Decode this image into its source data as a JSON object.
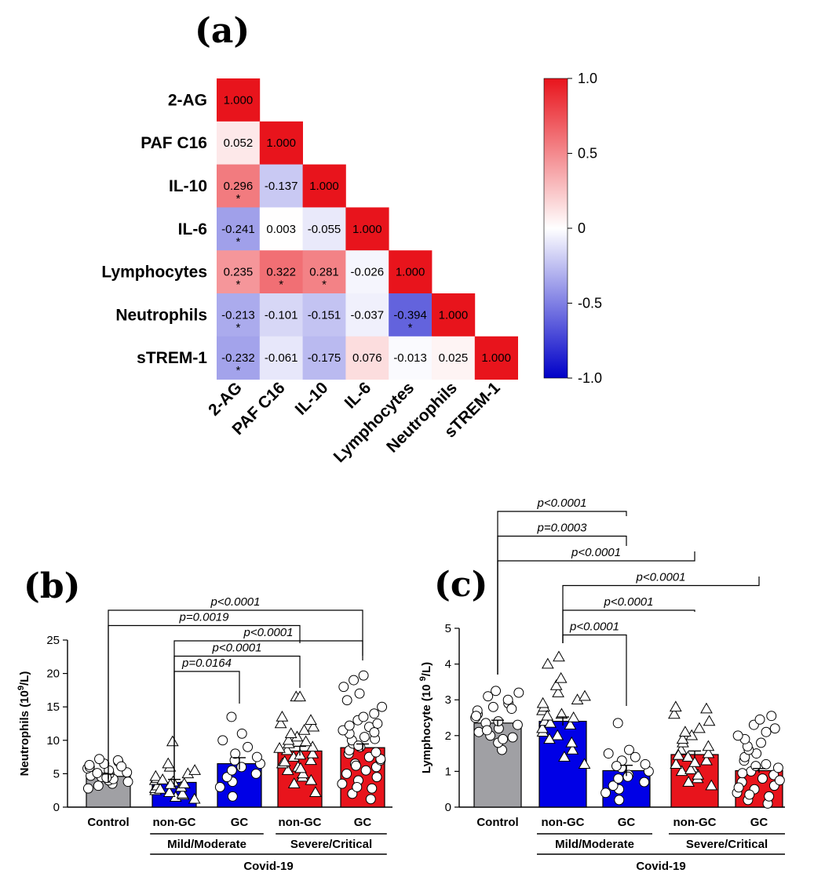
{
  "chart_data": [
    {
      "panel": "(a)",
      "type": "heatmap",
      "variables": [
        "2-AG",
        "PAF C16",
        "IL-10",
        "IL-6",
        "Lymphocytes",
        "Neutrophils",
        "sTREM-1"
      ],
      "matrix": [
        [
          "1.000"
        ],
        [
          "0.052",
          "1.000"
        ],
        [
          "0.296",
          "-0.137",
          "1.000"
        ],
        [
          "-0.241",
          "0.003",
          "-0.055",
          "1.000"
        ],
        [
          "0.235",
          "0.322",
          "0.281",
          "-0.026",
          "1.000"
        ],
        [
          "-0.213",
          "-0.101",
          "-0.151",
          "-0.037",
          "-0.394",
          "1.000"
        ],
        [
          "-0.232",
          "-0.061",
          "-0.175",
          "0.076",
          "-0.013",
          "0.025",
          "1.000"
        ]
      ],
      "significance_mark": "*",
      "significant": [
        [
          2,
          0
        ],
        [
          3,
          0
        ],
        [
          4,
          0
        ],
        [
          4,
          1
        ],
        [
          4,
          2
        ],
        [
          5,
          0
        ],
        [
          5,
          4
        ],
        [
          6,
          0
        ]
      ],
      "colorbar": {
        "ticks": [
          "1.0",
          "0.5",
          "0",
          "-0.5",
          "-1.0"
        ],
        "range": [
          -1,
          1
        ],
        "colors": {
          "low": "#0000c8",
          "mid": "#ffffff",
          "high": "#e8141c"
        }
      }
    },
    {
      "panel": "(b)",
      "type": "bar",
      "ylabel_pre": "Neutrophils (10",
      "ylabel_sup": "9",
      "ylabel_post": "/L)",
      "ylim": [
        0,
        25
      ],
      "yticks": [
        "0",
        "5",
        "10",
        "15",
        "20",
        "25"
      ],
      "categories": [
        "Control",
        "non-GC",
        "GC",
        "non-GC",
        "GC"
      ],
      "values": [
        4.6,
        3.7,
        6.5,
        8.4,
        8.9
      ],
      "sem": [
        0.35,
        0.45,
        0.9,
        0.7,
        0.55
      ],
      "bar_colors": [
        "#a0a0a4",
        "#0000e6",
        "#0000e6",
        "#e8141c",
        "#e8141c"
      ],
      "markers": [
        "circle",
        "triangle",
        "circle",
        "triangle",
        "circle"
      ],
      "points": [
        [
          3.5,
          4.0,
          4.2,
          4.5,
          4.7,
          5.0,
          5.2,
          5.5,
          5.8,
          6.0,
          6.3,
          6.5,
          6.8,
          7.0,
          7.2,
          3.8,
          4.4,
          5.1,
          3.2,
          2.8,
          6.1
        ],
        [
          1.2,
          1.5,
          1.8,
          2.0,
          2.2,
          2.5,
          2.8,
          3.0,
          3.2,
          3.5,
          3.8,
          4.0,
          4.3,
          4.6,
          5.0,
          5.5,
          6.0,
          6.5,
          9.8,
          2.7,
          3.4,
          4.1
        ],
        [
          1.6,
          3.0,
          3.8,
          4.5,
          5.0,
          5.5,
          6.0,
          6.5,
          7.0,
          7.5,
          8.0,
          9.0,
          10.0,
          11.0,
          13.5
        ],
        [
          2.2,
          3.5,
          4.5,
          5.0,
          5.5,
          6.0,
          6.5,
          7.0,
          7.5,
          8.0,
          8.5,
          9.0,
          9.5,
          10.0,
          10.5,
          11.0,
          11.5,
          12.0,
          12.5,
          13.0,
          13.5,
          16.5,
          16.5,
          6.8,
          7.8,
          8.8,
          9.8,
          4.0,
          5.8
        ],
        [
          1.2,
          2.0,
          2.8,
          3.5,
          4.0,
          4.5,
          5.0,
          5.5,
          6.0,
          6.5,
          7.0,
          7.5,
          8.0,
          8.5,
          9.0,
          9.5,
          10.0,
          10.5,
          11.0,
          11.5,
          12.0,
          12.5,
          13.0,
          13.5,
          14.0,
          15.0,
          16.0,
          17.0,
          18.0,
          19.0,
          19.7,
          3.0,
          6.2,
          7.2,
          8.2,
          9.2,
          10.2,
          11.2,
          12.2
        ]
      ],
      "subgroups": [
        {
          "label": "Mild/Moderate",
          "from": 1,
          "to": 2
        },
        {
          "label": "Severe/Critical",
          "from": 3,
          "to": 4
        }
      ],
      "group_label": "Covid-19",
      "brackets": [
        {
          "from": 0,
          "to": 4,
          "p": "p<0.0001"
        },
        {
          "from": 0,
          "to": 3,
          "p": "p=0.0019"
        },
        {
          "from": 1,
          "to": 4,
          "p": "p<0.0001"
        },
        {
          "from": 1,
          "to": 3,
          "p": "p<0.0001"
        },
        {
          "from": 1,
          "to": 2,
          "p": "p=0.0164"
        }
      ]
    },
    {
      "panel": "(c)",
      "type": "bar",
      "ylabel_pre": "Lymphocyte (10 ",
      "ylabel_sup": "9",
      "ylabel_post": "/L)",
      "ylim": [
        0,
        5
      ],
      "yticks": [
        "0",
        "1",
        "2",
        "3",
        "4",
        "5"
      ],
      "categories": [
        "Control",
        "non-GC",
        "GC",
        "non-GC",
        "GC"
      ],
      "values": [
        2.35,
        2.4,
        1.02,
        1.47,
        1.02
      ],
      "sem": [
        0.08,
        0.12,
        0.15,
        0.1,
        0.06
      ],
      "bar_colors": [
        "#a0a0a4",
        "#0000e6",
        "#0000e6",
        "#e8141c",
        "#e8141c"
      ],
      "markers": [
        "circle",
        "triangle",
        "circle",
        "triangle",
        "circle"
      ],
      "points": [
        [
          1.6,
          1.8,
          1.9,
          2.0,
          2.1,
          2.2,
          2.3,
          2.4,
          2.5,
          2.6,
          2.7,
          2.8,
          2.9,
          3.0,
          3.1,
          3.2,
          3.25,
          2.35,
          2.15,
          2.55,
          2.75,
          1.95
        ],
        [
          1.2,
          1.4,
          1.6,
          1.8,
          2.0,
          2.1,
          2.2,
          2.3,
          2.4,
          2.5,
          2.6,
          2.7,
          2.8,
          2.9,
          3.0,
          3.1,
          3.2,
          3.4,
          3.6,
          4.0,
          4.2,
          2.35,
          2.55,
          1.9
        ],
        [
          0.2,
          0.4,
          0.5,
          0.6,
          0.7,
          0.8,
          0.9,
          1.0,
          1.1,
          1.2,
          1.3,
          1.4,
          1.5,
          1.6,
          2.35,
          0.85,
          1.15
        ],
        [
          0.6,
          0.7,
          0.8,
          0.9,
          1.0,
          1.1,
          1.2,
          1.3,
          1.4,
          1.5,
          1.6,
          1.7,
          1.8,
          1.9,
          2.0,
          2.1,
          2.2,
          2.4,
          2.6,
          2.75,
          2.8,
          1.05,
          1.25,
          1.45
        ],
        [
          0.1,
          0.2,
          0.3,
          0.4,
          0.5,
          0.6,
          0.7,
          0.8,
          0.9,
          1.0,
          1.1,
          1.2,
          1.3,
          1.4,
          1.5,
          1.6,
          1.7,
          1.8,
          1.9,
          2.0,
          2.1,
          2.2,
          2.3,
          2.45,
          2.55,
          0.75,
          0.95,
          1.15,
          0.55,
          0.35
        ]
      ],
      "subgroups": [
        {
          "label": "Mild/Moderate",
          "from": 1,
          "to": 2
        },
        {
          "label": "Severe/Critical",
          "from": 3,
          "to": 4
        }
      ],
      "group_label": "Covid-19",
      "brackets": [
        {
          "from": 0,
          "to": 2,
          "p": "p<0.0001"
        },
        {
          "from": 0,
          "to": 2,
          "p": "p=0.0003"
        },
        {
          "from": 0,
          "to": 3,
          "p": "p<0.0001"
        },
        {
          "from": 1,
          "to": 4,
          "p": "p<0.0001"
        },
        {
          "from": 1,
          "to": 3,
          "p": "p<0.0001"
        },
        {
          "from": 1,
          "to": 2,
          "p": "p<0.0001"
        }
      ]
    }
  ]
}
